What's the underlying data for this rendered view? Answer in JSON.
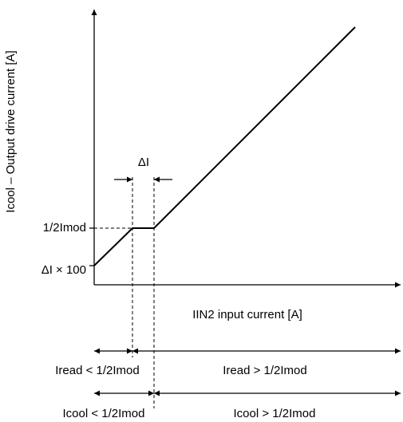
{
  "diagram": {
    "y_axis_label": "Icool – Output drive current [A]",
    "x_axis_label": "IIN2 input current [A]",
    "delta_label": "ΔI",
    "half_imod_label": "1/2Imod",
    "offset_label": "ΔI × 100",
    "ranges": [
      {
        "left": "Iread < 1/2Imod",
        "right": "Iread > 1/2Imod"
      },
      {
        "left": "Icool < 1/2Imod",
        "right": "Icool > 1/2Imod"
      }
    ]
  }
}
